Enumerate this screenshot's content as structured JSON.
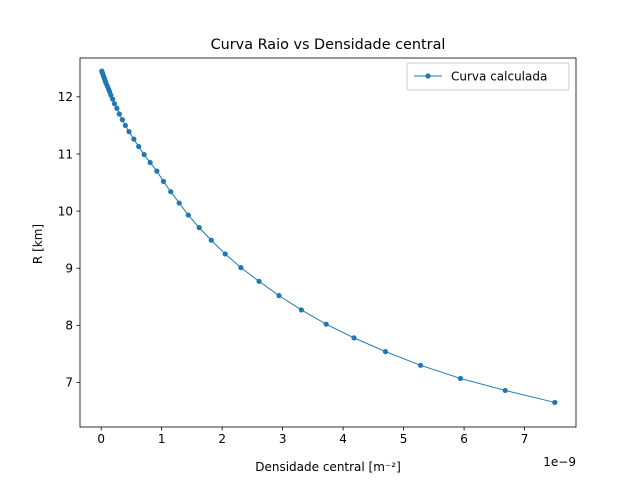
{
  "chart_data": {
    "type": "line",
    "title": "Curva Raio vs Densidade central",
    "xlabel": "Densidade central [m⁻²]",
    "ylabel": "R [km]",
    "x_offset_text": "1e−9",
    "xlim": [
      -0.35,
      7.85
    ],
    "ylim": [
      6.22,
      12.68
    ],
    "xticks": [
      0,
      1,
      2,
      3,
      4,
      5,
      6,
      7
    ],
    "yticks": [
      7,
      8,
      9,
      10,
      11,
      12
    ],
    "grid": false,
    "legend_position": "top-right",
    "series": [
      {
        "name": "Curva calculada",
        "color": "#1f77b4",
        "x": [
          0.01,
          0.02,
          0.03,
          0.04,
          0.05,
          0.06,
          0.07,
          0.08,
          0.1,
          0.12,
          0.14,
          0.16,
          0.19,
          0.22,
          0.26,
          0.3,
          0.35,
          0.4,
          0.46,
          0.54,
          0.62,
          0.71,
          0.81,
          0.92,
          1.03,
          1.15,
          1.29,
          1.44,
          1.62,
          1.82,
          2.05,
          2.31,
          2.61,
          2.94,
          3.31,
          3.72,
          4.18,
          4.7,
          5.28,
          5.94,
          6.68,
          7.5
        ],
        "y": [
          12.45,
          12.42,
          12.39,
          12.36,
          12.33,
          12.3,
          12.27,
          12.24,
          12.19,
          12.14,
          12.09,
          12.03,
          11.96,
          11.88,
          11.8,
          11.7,
          11.6,
          11.5,
          11.39,
          11.26,
          11.13,
          10.99,
          10.85,
          10.7,
          10.52,
          10.34,
          10.14,
          9.93,
          9.71,
          9.49,
          9.25,
          9.01,
          8.77,
          8.52,
          8.27,
          8.02,
          7.78,
          7.54,
          7.3,
          7.07,
          6.86,
          6.65
        ]
      }
    ]
  }
}
